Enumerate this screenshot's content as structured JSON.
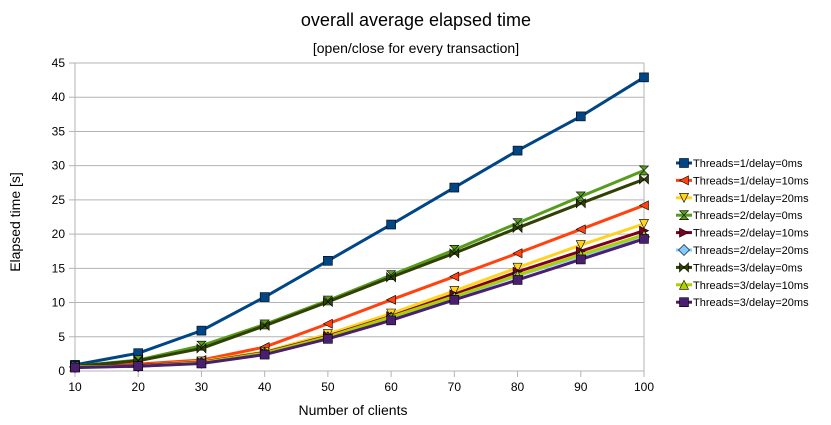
{
  "chart_data": {
    "type": "line",
    "title": "overall average elapsed time",
    "subtitle": "[open/close for every transaction]",
    "xlabel": "Number of clients",
    "ylabel": "Elapsed time [s]",
    "x": [
      10,
      20,
      30,
      40,
      50,
      60,
      70,
      80,
      90,
      100
    ],
    "xlim": [
      10,
      100
    ],
    "ylim": [
      0,
      45
    ],
    "yticks": [
      0,
      5,
      10,
      15,
      20,
      25,
      30,
      35,
      40,
      45
    ],
    "xticks": [
      10,
      20,
      30,
      40,
      50,
      60,
      70,
      80,
      90,
      100
    ],
    "grid": "horizontal",
    "legend": "right",
    "series": [
      {
        "name": "Threads=1/delay=0ms",
        "color": "#004586",
        "marker": "square",
        "values": [
          0.9,
          2.6,
          5.9,
          10.8,
          16.1,
          21.4,
          26.8,
          32.2,
          37.2,
          42.9
        ]
      },
      {
        "name": "Threads=1/delay=10ms",
        "color": "#ff420e",
        "marker": "triangle-left",
        "values": [
          0.6,
          1.0,
          1.6,
          3.5,
          6.9,
          10.4,
          13.8,
          17.2,
          20.7,
          24.2
        ]
      },
      {
        "name": "Threads=1/delay=20ms",
        "color": "#ffd320",
        "marker": "triangle-down",
        "values": [
          0.6,
          0.8,
          1.4,
          2.8,
          5.4,
          8.4,
          11.7,
          15.1,
          18.4,
          21.5
        ]
      },
      {
        "name": "Threads=2/delay=0ms",
        "color": "#579d1c",
        "marker": "hourglass",
        "values": [
          0.7,
          1.6,
          3.7,
          6.8,
          10.3,
          14.0,
          17.7,
          21.6,
          25.5,
          29.3
        ]
      },
      {
        "name": "Threads=2/delay=10ms",
        "color": "#7e0021",
        "marker": "triangle-right",
        "values": [
          0.6,
          0.8,
          1.3,
          2.7,
          5.1,
          8.0,
          11.2,
          14.5,
          17.5,
          20.5
        ]
      },
      {
        "name": "Threads=2/delay=20ms",
        "color": "#83caff",
        "marker": "diamond",
        "values": [
          0.6,
          0.7,
          1.2,
          2.6,
          4.9,
          7.8,
          10.7,
          13.9,
          16.8,
          19.6
        ]
      },
      {
        "name": "Threads=3/delay=0ms",
        "color": "#314004",
        "marker": "bowtie",
        "values": [
          0.7,
          1.5,
          3.3,
          6.6,
          10.1,
          13.7,
          17.2,
          20.9,
          24.5,
          28.0
        ]
      },
      {
        "name": "Threads=3/delay=10ms",
        "color": "#aecf00",
        "marker": "triangle-up",
        "values": [
          0.6,
          0.7,
          1.2,
          2.6,
          5.0,
          7.9,
          10.9,
          14.0,
          17.0,
          19.9
        ]
      },
      {
        "name": "Threads=3/delay=20ms",
        "color": "#4b1f6f",
        "marker": "square",
        "values": [
          0.5,
          0.7,
          1.1,
          2.4,
          4.7,
          7.4,
          10.4,
          13.3,
          16.3,
          19.3
        ]
      }
    ]
  }
}
